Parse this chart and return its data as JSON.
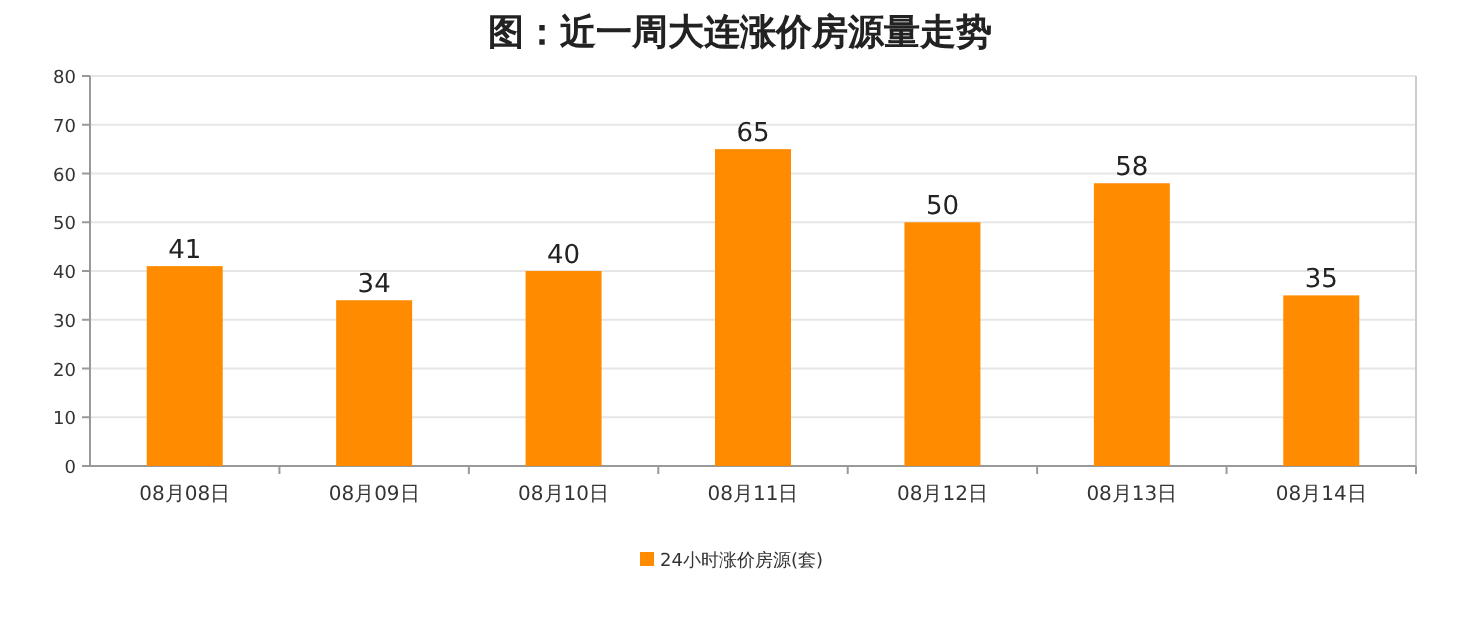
{
  "chart_data": {
    "type": "bar",
    "title": "图：近一周大连涨价房源量走势",
    "categories": [
      "08月08日",
      "08月09日",
      "08月10日",
      "08月11日",
      "08月12日",
      "08月13日",
      "08月14日"
    ],
    "series": [
      {
        "name": "24小时涨价房源(套)",
        "color": "#ff8c00",
        "values": [
          41,
          34,
          40,
          65,
          50,
          58,
          35
        ]
      }
    ],
    "ylim": [
      0,
      80
    ],
    "yticks": [
      0,
      10,
      20,
      30,
      40,
      50,
      60,
      70,
      80
    ],
    "grid": "y",
    "legend": "bottom",
    "data_labels": true
  }
}
